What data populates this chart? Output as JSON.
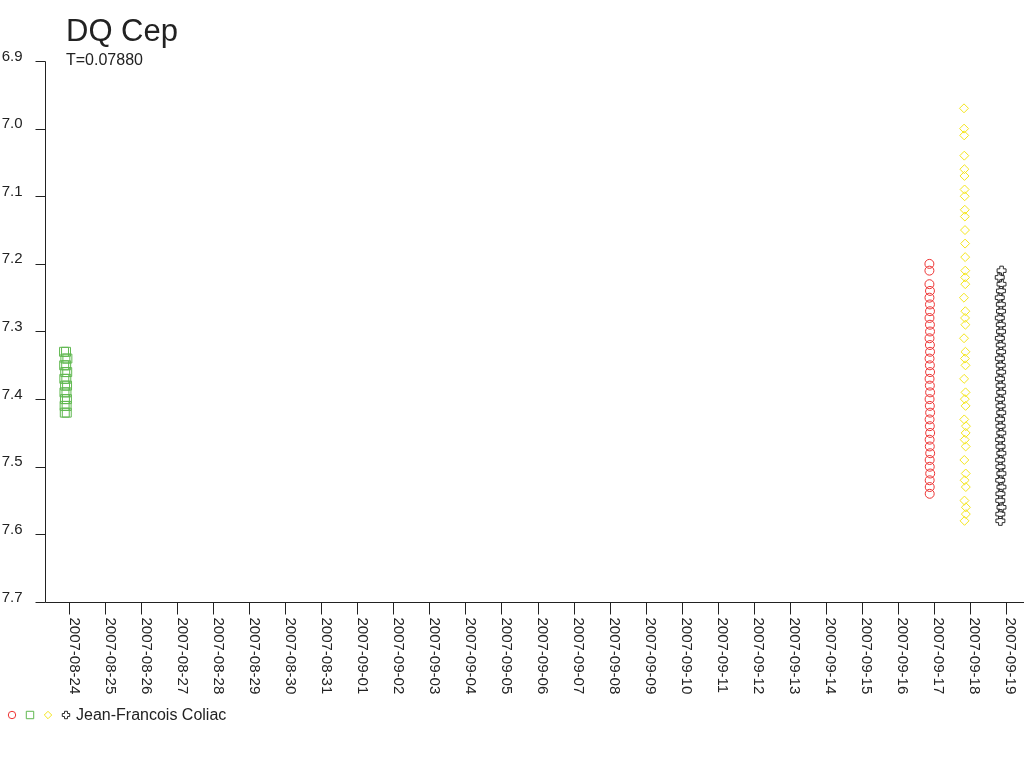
{
  "chart_data": {
    "type": "scatter",
    "title": "DQ Cep",
    "subtitle": "T=0.07880",
    "legend": "bottom left",
    "xlim": [
      "2007-08-23T08:00",
      "2007-09-19T12:00"
    ],
    "xticks": [
      "2007-08-24",
      "2007-08-25",
      "2007-08-26",
      "2007-08-27",
      "2007-08-28",
      "2007-08-29",
      "2007-08-30",
      "2007-08-31",
      "2007-09-01",
      "2007-09-02",
      "2007-09-03",
      "2007-09-04",
      "2007-09-05",
      "2007-09-06",
      "2007-09-07",
      "2007-09-08",
      "2007-09-09",
      "2007-09-10",
      "2007-09-11",
      "2007-09-12",
      "2007-09-13",
      "2007-09-14",
      "2007-09-15",
      "2007-09-16",
      "2007-09-17",
      "2007-09-18",
      "2007-09-19"
    ],
    "ylim": [
      7.7,
      6.9
    ],
    "yticks": [
      6.9,
      {
        "value": 7,
        "label": "7.0"
      },
      7.1,
      7.2,
      7.3,
      7.4,
      7.5,
      7.6,
      7.7
    ],
    "series": [
      {
        "color": "#ee3333",
        "marker": "circle",
        "x": [
          "2007-09-16T20:59",
          "2007-09-16T21:00",
          "2007-09-16T21:01",
          "2007-09-16T21:02",
          "2007-09-16T21:03",
          "2007-09-16T21:04",
          "2007-09-16T21:05",
          "2007-09-16T21:06",
          "2007-09-16T21:07",
          "2007-09-16T21:08",
          "2007-09-16T21:09",
          "2007-09-16T21:10",
          "2007-09-16T21:11",
          "2007-09-16T21:12",
          "2007-09-16T21:13",
          "2007-09-16T21:14",
          "2007-09-16T21:15",
          "2007-09-16T21:16",
          "2007-09-16T21:17",
          "2007-09-16T21:18",
          "2007-09-16T21:19",
          "2007-09-16T21:20",
          "2007-09-16T21:21",
          "2007-09-16T21:22",
          "2007-09-16T21:23",
          "2007-09-16T21:24",
          "2007-09-16T21:25",
          "2007-09-16T21:26",
          "2007-09-16T21:27",
          "2007-09-16T21:28",
          "2007-09-16T21:29",
          "2007-09-16T21:30",
          "2007-09-16T21:31",
          "2007-09-16T21:32"
        ],
        "values": [
          7.2,
          7.21,
          7.23,
          7.25,
          7.28,
          7.31,
          7.34,
          7.37,
          7.4,
          7.43,
          7.46,
          7.49,
          7.52,
          7.54,
          7.53,
          7.5,
          7.47,
          7.44,
          7.41,
          7.38,
          7.35,
          7.32,
          7.29,
          7.26,
          7.24,
          7.27,
          7.3,
          7.33,
          7.36,
          7.39,
          7.42,
          7.45,
          7.48,
          7.51
        ]
      },
      {
        "color": "#60b850",
        "marker": "square",
        "x": [
          "2007-08-23T20:40",
          "2007-08-23T20:46",
          "2007-08-23T20:52",
          "2007-08-23T20:58",
          "2007-08-23T21:04",
          "2007-08-23T21:10",
          "2007-08-23T21:16",
          "2007-08-23T21:22",
          "2007-08-23T21:28",
          "2007-08-23T21:34",
          "2007-08-23T22:00",
          "2007-08-23T22:06",
          "2007-08-23T22:12",
          "2007-08-23T22:18",
          "2007-08-23T22:24",
          "2007-08-23T22:30",
          "2007-08-23T22:36",
          "2007-08-23T22:42",
          "2007-08-23T22:48",
          "2007-08-23T22:54"
        ],
        "values": [
          7.33,
          7.35,
          7.37,
          7.39,
          7.41,
          7.42,
          7.4,
          7.38,
          7.36,
          7.34,
          7.33,
          7.35,
          7.37,
          7.39,
          7.41,
          7.42,
          7.4,
          7.38,
          7.36,
          7.34
        ]
      },
      {
        "color": "#f5e61e",
        "marker": "diamond",
        "x": [
          "2007-09-17T20:00",
          "2007-09-17T20:02",
          "2007-09-17T20:04",
          "2007-09-17T20:06",
          "2007-09-17T20:08",
          "2007-09-17T20:10",
          "2007-09-17T20:12",
          "2007-09-17T20:14",
          "2007-09-17T20:16",
          "2007-09-17T20:18",
          "2007-09-17T20:20",
          "2007-09-17T20:22",
          "2007-09-17T20:24",
          "2007-09-17T20:26",
          "2007-09-17T20:28",
          "2007-09-17T20:30",
          "2007-09-17T20:32",
          "2007-09-17T20:34",
          "2007-09-17T20:36",
          "2007-09-17T20:38",
          "2007-09-17T20:40",
          "2007-09-17T20:42",
          "2007-09-17T20:44",
          "2007-09-17T20:46",
          "2007-09-17T20:48",
          "2007-09-17T20:50",
          "2007-09-17T20:52",
          "2007-09-17T20:54",
          "2007-09-17T20:56",
          "2007-09-17T20:58",
          "2007-09-17T21:00",
          "2007-09-17T21:02",
          "2007-09-17T21:04",
          "2007-09-17T21:06",
          "2007-09-17T21:08",
          "2007-09-17T21:10",
          "2007-09-17T21:12",
          "2007-09-17T21:14",
          "2007-09-17T21:16",
          "2007-09-17T21:18",
          "2007-09-17T21:20"
        ],
        "values": [
          7.25,
          6.97,
          7.31,
          7.0,
          7.37,
          7.01,
          7.43,
          7.04,
          7.49,
          7.06,
          7.55,
          7.07,
          7.58,
          7.09,
          7.52,
          7.1,
          7.46,
          7.12,
          7.4,
          7.13,
          7.34,
          7.15,
          7.28,
          7.17,
          7.22,
          7.19,
          7.21,
          7.23,
          7.27,
          7.29,
          7.33,
          7.35,
          7.39,
          7.41,
          7.45,
          7.47,
          7.51,
          7.53,
          7.57,
          7.56,
          7.44
        ]
      },
      {
        "name": "Jean-Francois Coliac",
        "color": "#2b2b2b",
        "marker": "cross",
        "x": [
          "2007-09-18T19:50",
          "2007-09-18T19:52",
          "2007-09-18T19:54",
          "2007-09-18T19:56",
          "2007-09-18T19:58",
          "2007-09-18T20:00",
          "2007-09-18T20:02",
          "2007-09-18T20:04",
          "2007-09-18T20:06",
          "2007-09-18T20:08",
          "2007-09-18T20:10",
          "2007-09-18T20:12",
          "2007-09-18T20:14",
          "2007-09-18T20:16",
          "2007-09-18T20:18",
          "2007-09-18T20:20",
          "2007-09-18T20:22",
          "2007-09-18T20:24",
          "2007-09-18T20:26",
          "2007-09-18T20:28",
          "2007-09-18T20:30",
          "2007-09-18T20:32",
          "2007-09-18T20:34",
          "2007-09-18T20:36",
          "2007-09-18T20:38",
          "2007-09-18T20:40",
          "2007-09-18T20:42",
          "2007-09-18T20:44",
          "2007-09-18T20:46",
          "2007-09-18T20:48",
          "2007-09-18T20:50",
          "2007-09-18T20:52",
          "2007-09-18T20:54",
          "2007-09-18T20:56",
          "2007-09-18T20:58",
          "2007-09-18T21:00",
          "2007-09-18T21:02",
          "2007-09-18T21:04"
        ],
        "values": [
          7.22,
          7.25,
          7.28,
          7.31,
          7.34,
          7.37,
          7.4,
          7.43,
          7.46,
          7.49,
          7.52,
          7.55,
          7.57,
          7.58,
          7.54,
          7.5,
          7.47,
          7.44,
          7.41,
          7.38,
          7.35,
          7.32,
          7.29,
          7.26,
          7.24,
          7.27,
          7.3,
          7.33,
          7.36,
          7.39,
          7.42,
          7.45,
          7.48,
          7.51,
          7.53,
          7.56,
          7.23,
          7.21
        ]
      }
    ]
  }
}
